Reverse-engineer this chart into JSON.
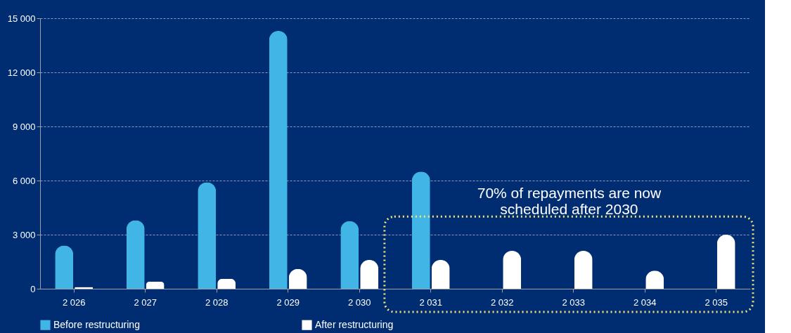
{
  "chart_data": {
    "type": "bar",
    "categories": [
      "2 026",
      "2 027",
      "2 028",
      "2 029",
      "2 030",
      "2 031",
      "2 032",
      "2 033",
      "2 034",
      "2 035"
    ],
    "series": [
      {
        "name": "Before restructuring",
        "color": "#41b6e6",
        "values": [
          2400,
          3800,
          5900,
          14300,
          3750,
          6500,
          null,
          null,
          null,
          null
        ]
      },
      {
        "name": "After restructuring",
        "color": "#ffffff",
        "values": [
          100,
          400,
          550,
          1100,
          1600,
          1600,
          2100,
          2100,
          1000,
          3000
        ]
      }
    ],
    "ylim": [
      0,
      15000
    ],
    "yticks": [
      {
        "value": 0,
        "label": "0"
      },
      {
        "value": 3000,
        "label": "3 000"
      },
      {
        "value": 6000,
        "label": "6 000"
      },
      {
        "value": 9000,
        "label": "9 000"
      },
      {
        "value": 12000,
        "label": "12 000"
      },
      {
        "value": 15000,
        "label": "15 000"
      }
    ],
    "grid": "y",
    "legend": "bottom",
    "annotations": [
      "70% of repayments are now\nscheduled after 2030"
    ]
  }
}
